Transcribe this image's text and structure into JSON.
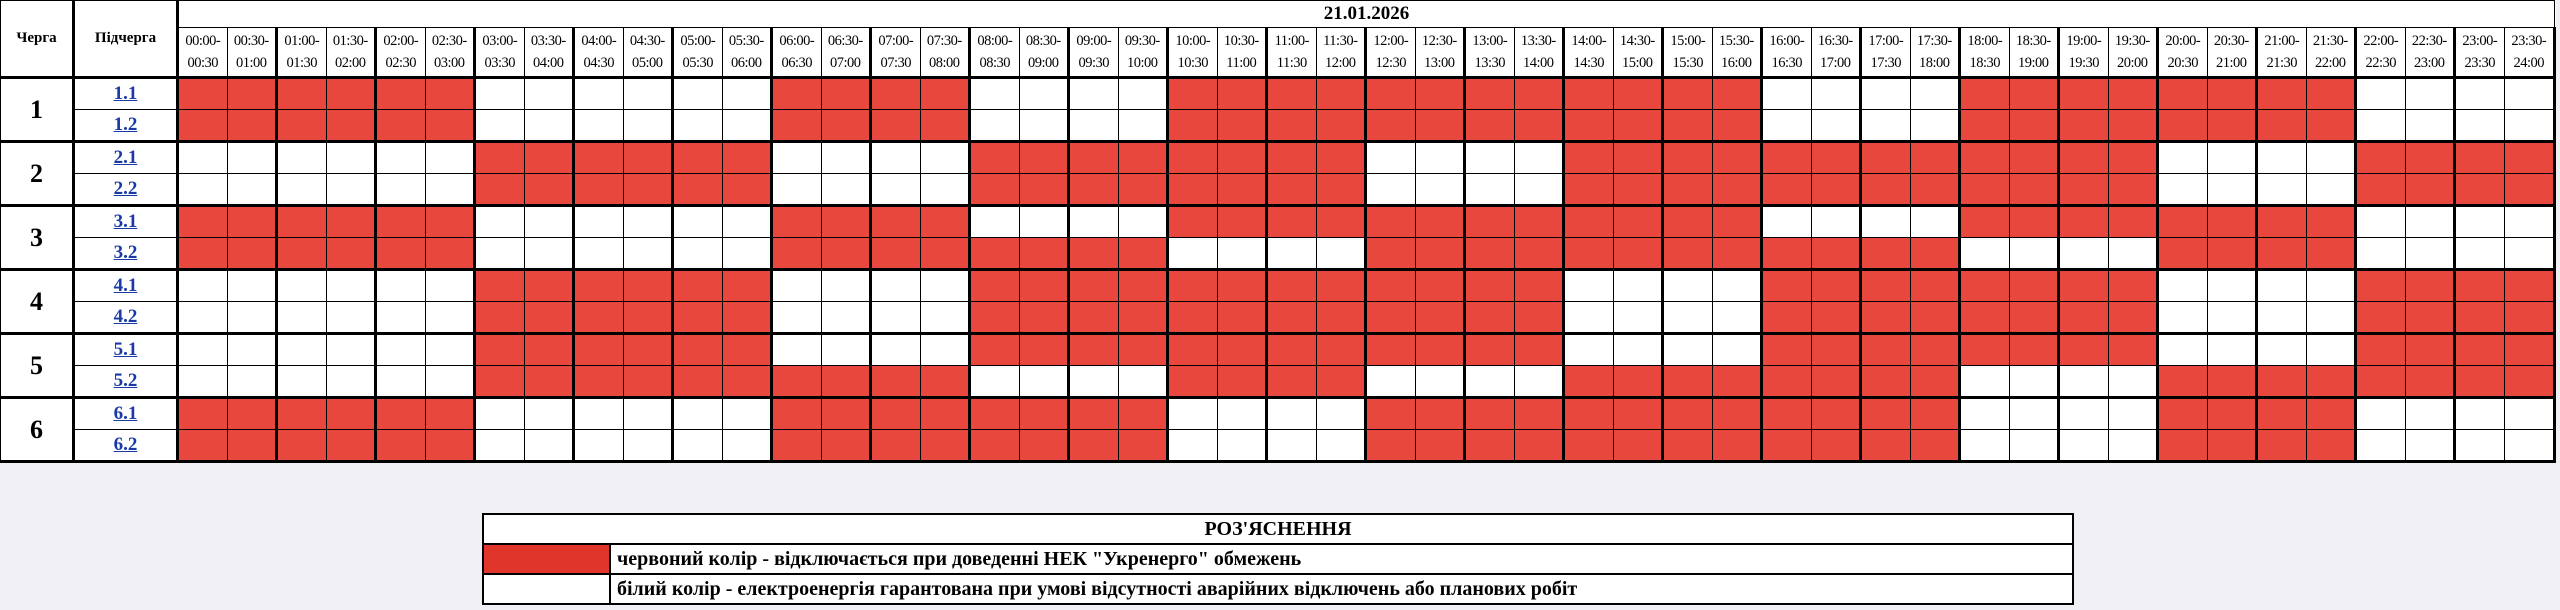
{
  "header": {
    "queue": "Черга",
    "subqueue": "Підчерга",
    "date": "21.01.2026"
  },
  "slots": [
    {
      "start": "00:00-",
      "end": "00:30"
    },
    {
      "start": "00:30-",
      "end": "01:00"
    },
    {
      "start": "01:00-",
      "end": "01:30"
    },
    {
      "start": "01:30-",
      "end": "02:00"
    },
    {
      "start": "02:00-",
      "end": "02:30"
    },
    {
      "start": "02:30-",
      "end": "03:00"
    },
    {
      "start": "03:00-",
      "end": "03:30"
    },
    {
      "start": "03:30-",
      "end": "04:00"
    },
    {
      "start": "04:00-",
      "end": "04:30"
    },
    {
      "start": "04:30-",
      "end": "05:00"
    },
    {
      "start": "05:00-",
      "end": "05:30"
    },
    {
      "start": "05:30-",
      "end": "06:00"
    },
    {
      "start": "06:00-",
      "end": "06:30"
    },
    {
      "start": "06:30-",
      "end": "07:00"
    },
    {
      "start": "07:00-",
      "end": "07:30"
    },
    {
      "start": "07:30-",
      "end": "08:00"
    },
    {
      "start": "08:00-",
      "end": "08:30"
    },
    {
      "start": "08:30-",
      "end": "09:00"
    },
    {
      "start": "09:00-",
      "end": "09:30"
    },
    {
      "start": "09:30-",
      "end": "10:00"
    },
    {
      "start": "10:00-",
      "end": "10:30"
    },
    {
      "start": "10:30-",
      "end": "11:00"
    },
    {
      "start": "11:00-",
      "end": "11:30"
    },
    {
      "start": "11:30-",
      "end": "12:00"
    },
    {
      "start": "12:00-",
      "end": "12:30"
    },
    {
      "start": "12:30-",
      "end": "13:00"
    },
    {
      "start": "13:00-",
      "end": "13:30"
    },
    {
      "start": "13:30-",
      "end": "14:00"
    },
    {
      "start": "14:00-",
      "end": "14:30"
    },
    {
      "start": "14:30-",
      "end": "15:00"
    },
    {
      "start": "15:00-",
      "end": "15:30"
    },
    {
      "start": "15:30-",
      "end": "16:00"
    },
    {
      "start": "16:00-",
      "end": "16:30"
    },
    {
      "start": "16:30-",
      "end": "17:00"
    },
    {
      "start": "17:00-",
      "end": "17:30"
    },
    {
      "start": "17:30-",
      "end": "18:00"
    },
    {
      "start": "18:00-",
      "end": "18:30"
    },
    {
      "start": "18:30-",
      "end": "19:00"
    },
    {
      "start": "19:00-",
      "end": "19:30"
    },
    {
      "start": "19:30-",
      "end": "20:00"
    },
    {
      "start": "20:00-",
      "end": "20:30"
    },
    {
      "start": "20:30-",
      "end": "21:00"
    },
    {
      "start": "21:00-",
      "end": "21:30"
    },
    {
      "start": "21:30-",
      "end": "22:00"
    },
    {
      "start": "22:00-",
      "end": "22:30"
    },
    {
      "start": "22:30-",
      "end": "23:00"
    },
    {
      "start": "23:00-",
      "end": "23:30"
    },
    {
      "start": "23:30-",
      "end": "24:00"
    }
  ],
  "state_colors": {
    "R": "#e8473e",
    "W": "#ffffff"
  },
  "groups": [
    {
      "label": "1",
      "subgroups": [
        {
          "label": "1.1",
          "states": "RRRRRRWWWWWWRRRRWWWWRRRRRRRRRRRRWWWWRRRRRRRRWWWW"
        },
        {
          "label": "1.2",
          "states": "RRRRRRWWWWWWRRRRWWWWRRRRRRRRRRRRWWWWRRRRRRRRWWWW"
        }
      ]
    },
    {
      "label": "2",
      "subgroups": [
        {
          "label": "2.1",
          "states": "WWWWWWRRRRRRWWWWRRRRRRRRWWWWRRRRRRRRRRRRWWWWRRRR"
        },
        {
          "label": "2.2",
          "states": "WWWWWWRRRRRRWWWWRRRRRRRRWWWWRRRRRRRRRRRRWWWWRRRR"
        }
      ]
    },
    {
      "label": "3",
      "subgroups": [
        {
          "label": "3.1",
          "states": "RRRRRRWWWWWWRRRRWWWWRRRRRRRRRRRRWWWWRRRRRRRRWWWW"
        },
        {
          "label": "3.2",
          "states": "RRRRRRWWWWWWRRRRRRRRWWWWRRRRRRRRRRRRWWWWRRRRWWWW"
        }
      ]
    },
    {
      "label": "4",
      "subgroups": [
        {
          "label": "4.1",
          "states": "WWWWWWRRRRRRWWWWRRRRRRRRRRRRWWWWRRRRRRRRWWWWRRRR"
        },
        {
          "label": "4.2",
          "states": "WWWWWWRRRRRRWWWWRRRRRRRRRRRRWWWWRRRRRRRRWWWWRRRR"
        }
      ]
    },
    {
      "label": "5",
      "subgroups": [
        {
          "label": "5.1",
          "states": "WWWWWWRRRRRRWWWWRRRRRRRRRRRRWWWWRRRRRRRRWWWWRRRR"
        },
        {
          "label": "5.2",
          "states": "WWWWWWRRRRRRRRRRWWWWRRRRWWWWRRRRRRRRWWWWRRRRRRRR"
        }
      ]
    },
    {
      "label": "6",
      "subgroups": [
        {
          "label": "6.1",
          "states": "RRRRRRWWWWWWRRRRRRRRWWWWRRRRRRRRRRRRWWWWRRRRWWWW"
        },
        {
          "label": "6.2",
          "states": "RRRRRRWWWWWWRRRRRRRRWWWWRRRRRRRRRRRRWWWWRRRRWWWW"
        }
      ]
    }
  ],
  "legend": {
    "title": "РОЗ'ЯСНЕННЯ",
    "items": [
      {
        "color": "#e0352b",
        "text": "червоний колір - відключається при доведенні НЕК \"Укренерго\" обмежень"
      },
      {
        "color": "#ffffff",
        "text": "білий колір - електроенергія гарантована при умові відсутності аварійних відключень або планових робіт"
      }
    ]
  }
}
